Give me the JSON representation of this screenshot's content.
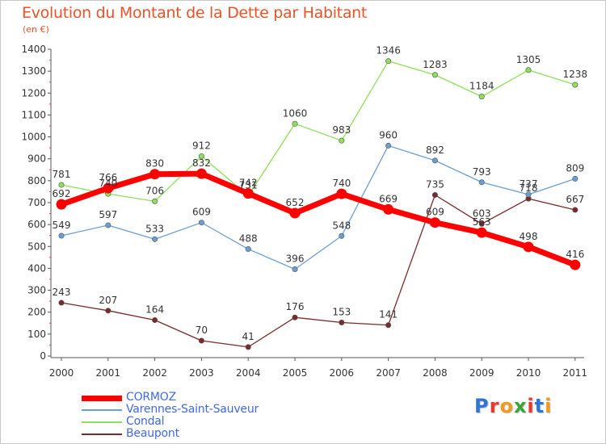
{
  "title": "Evolution du Montant de la Dette par Habitant",
  "unit_label": "(en €)",
  "logo_text": "Proxiti",
  "chart_data": {
    "type": "line",
    "x": [
      "2000",
      "2001",
      "2002",
      "2003",
      "2004",
      "2005",
      "2006",
      "2007",
      "2008",
      "2009",
      "2010",
      "2011"
    ],
    "ylim": [
      0,
      1400
    ],
    "yticks": [
      0,
      100,
      200,
      300,
      400,
      500,
      600,
      700,
      800,
      900,
      1000,
      1100,
      1200,
      1300,
      1400
    ],
    "grid": false,
    "legend_position": "bottom-left",
    "series": [
      {
        "name": "Beaupont",
        "color": "#7a2a2a",
        "values": [
          243,
          207,
          164,
          70,
          41,
          176,
          153,
          141,
          735,
          603,
          718,
          667
        ]
      },
      {
        "name": "Condal",
        "color": "#8ee05a",
        "values": [
          781,
          740,
          706,
          912,
          731,
          1060,
          983,
          1346,
          1283,
          1184,
          1305,
          1238
        ]
      },
      {
        "name": "Varennes-Saint-Sauveur",
        "color": "#6b9fd1",
        "values": [
          549,
          597,
          533,
          609,
          488,
          396,
          548,
          960,
          892,
          793,
          737,
          809
        ]
      },
      {
        "name": "CORMOZ",
        "color": "#ff0000",
        "values": [
          692,
          766,
          830,
          832,
          742,
          652,
          740,
          669,
          609,
          563,
          498,
          416
        ]
      }
    ]
  }
}
